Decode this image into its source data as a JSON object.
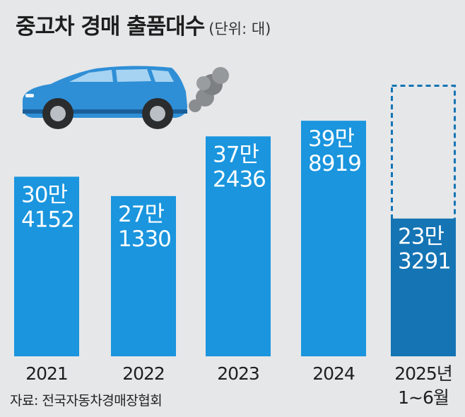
{
  "title": "중고차 경매 출품대수",
  "unit_label": "(단위: 대)",
  "source": "자료: 전국자동차경매장협회",
  "colors": {
    "bar": "#1a95de",
    "bar_partial": "#1474b4",
    "dashed_outline": "#1474b4",
    "value_text": "#ffffff",
    "axis_text": "#1e1e1e",
    "car_body": "#2f8fd6",
    "smoke": "#8a8d90"
  },
  "icons": [
    "car-icon",
    "exhaust-smoke-icon"
  ],
  "chart_data": {
    "type": "bar",
    "title": "중고차 경매 출품대수",
    "unit": "대",
    "categories": [
      "2021",
      "2022",
      "2023",
      "2024",
      "2025년 1~6월"
    ],
    "category_lines": [
      [
        "2021"
      ],
      [
        "2022"
      ],
      [
        "2023"
      ],
      [
        "2024"
      ],
      [
        "2025년",
        "1~6월"
      ]
    ],
    "values": [
      304152,
      271330,
      372436,
      398919,
      233291
    ],
    "value_labels": [
      [
        "30만",
        "4152"
      ],
      [
        "27만",
        "1330"
      ],
      [
        "37만",
        "2436"
      ],
      [
        "39만",
        "8919"
      ],
      [
        "23만",
        "3291"
      ]
    ],
    "partial_period_index": 4,
    "ylim": [
      0,
      460000
    ],
    "grid": false,
    "legend": "none"
  }
}
